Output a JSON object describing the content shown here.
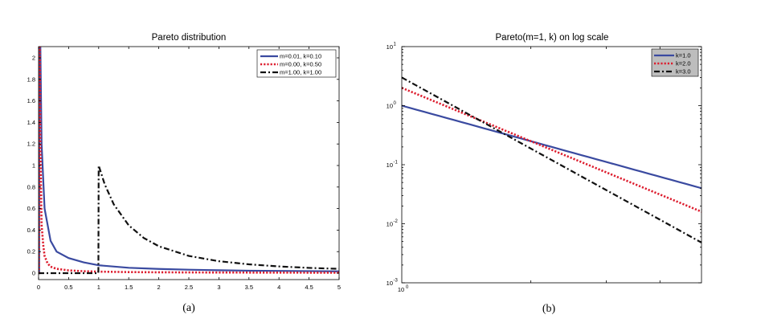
{
  "chart_data": [
    {
      "type": "line",
      "title": "Pareto distribution",
      "caption": "(a)",
      "xlabel": "",
      "ylabel": "",
      "xlim": [
        0,
        5
      ],
      "ylim": [
        -0.05,
        2.1
      ],
      "x_ticks": [
        "0",
        "0.5",
        "1",
        "1.5",
        "2",
        "2.5",
        "3",
        "3.5",
        "4",
        "4.5",
        "5"
      ],
      "y_ticks": [
        "0",
        "0.2",
        "0.4",
        "0.6",
        "0.8",
        "1",
        "1.2",
        "1.4",
        "1.6",
        "1.8",
        "2"
      ],
      "legend_position": "top-right",
      "series": [
        {
          "name": "m=0.01, k=0.10",
          "color": "#3a4aa0",
          "style": "solid",
          "x": [
            0.0,
            0.01,
            0.011,
            0.02,
            0.03,
            0.05,
            0.1,
            0.2,
            0.3,
            0.5,
            0.75,
            1,
            1.5,
            2,
            2.5,
            3,
            3.5,
            4,
            4.5,
            5
          ],
          "y": [
            0.0,
            0.0,
            2.1,
            2.1,
            2.1,
            1.2,
            0.6,
            0.3,
            0.2,
            0.14,
            0.1,
            0.073,
            0.05,
            0.039,
            0.032,
            0.027,
            0.023,
            0.021,
            0.019,
            0.017
          ]
        },
        {
          "name": "m=0.00, k=0.50",
          "color": "#dd1e2f",
          "style": "dotted",
          "x": [
            0.0,
            0.005,
            0.006,
            0.02,
            0.03,
            0.05,
            0.08,
            0.1,
            0.15,
            0.2,
            0.3,
            0.5,
            0.75,
            1,
            1.5,
            2,
            3,
            4,
            5
          ],
          "y": [
            0.0,
            0.0,
            2.1,
            2.1,
            1.2,
            0.45,
            0.25,
            0.16,
            0.09,
            0.06,
            0.04,
            0.026,
            0.018,
            0.014,
            0.01,
            0.008,
            0.006,
            0.005,
            0.004
          ]
        },
        {
          "name": "m=1.00, k=1.00",
          "color": "#111111",
          "style": "dashdot",
          "x": [
            0.0,
            0.99,
            0.995,
            1.0,
            1.1,
            1.25,
            1.5,
            1.75,
            2,
            2.5,
            3,
            3.5,
            4,
            4.5,
            5
          ],
          "y": [
            0.0,
            0.0,
            0.0,
            1.0,
            0.826,
            0.64,
            0.444,
            0.327,
            0.25,
            0.16,
            0.111,
            0.082,
            0.0625,
            0.049,
            0.04
          ]
        }
      ]
    },
    {
      "type": "line",
      "title": "Pareto(m=1, k) on log scale",
      "caption": "(b)",
      "xlabel": "",
      "ylabel": "",
      "xscale": "log",
      "yscale": "log",
      "xlim": [
        1,
        5
      ],
      "ylim": [
        0.001,
        10
      ],
      "x_ticks": [
        {
          "base": "10",
          "exp": "0"
        }
      ],
      "y_ticks": [
        {
          "base": "10",
          "exp": "1"
        },
        {
          "base": "10",
          "exp": "0"
        },
        {
          "base": "10",
          "exp": "-1"
        },
        {
          "base": "10",
          "exp": "-2"
        },
        {
          "base": "10",
          "exp": "-3"
        }
      ],
      "legend_position": "top-right",
      "series": [
        {
          "name": "k=1.0",
          "color": "#3a4aa0",
          "style": "solid",
          "k": 1.0,
          "x": [
            1,
            5
          ],
          "y": [
            1.0,
            0.04
          ]
        },
        {
          "name": "k=2.0",
          "color": "#dd1e2f",
          "style": "dotted",
          "k": 2.0,
          "x": [
            1,
            5
          ],
          "y": [
            2.0,
            0.016
          ]
        },
        {
          "name": "k=3.0",
          "color": "#111111",
          "style": "dashdot",
          "k": 3.0,
          "x": [
            1,
            5
          ],
          "y": [
            3.0,
            0.0048
          ]
        }
      ]
    }
  ]
}
